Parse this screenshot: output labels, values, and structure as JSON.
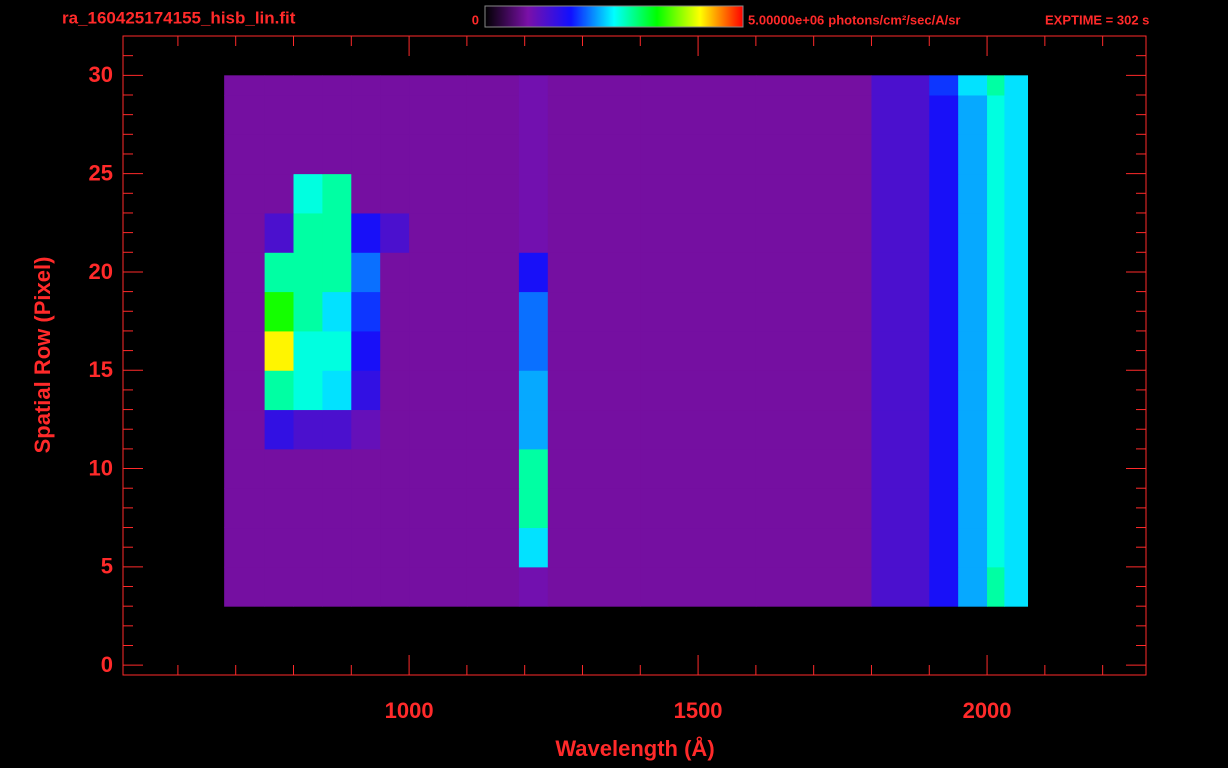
{
  "chart_data": {
    "type": "heatmap",
    "title": "ra_160425174155_hisb_lin.fit",
    "exposure": "EXPTIME = 302 s",
    "x_label": "Wavelength (Å)",
    "y_label": "Spatial Row (Pixel)",
    "xlim": [
      505,
      2275
    ],
    "xticks": [
      1000,
      1500,
      2000
    ],
    "xminorticks": [
      600,
      700,
      800,
      900,
      1100,
      1200,
      1300,
      1400,
      1600,
      1700,
      1800,
      1900,
      2100,
      2200
    ],
    "ylim": [
      -0.5,
      32
    ],
    "yticks": [
      0,
      5,
      10,
      15,
      20,
      25,
      30
    ],
    "yminorticks": [
      1,
      2,
      3,
      4,
      6,
      7,
      8,
      9,
      11,
      12,
      13,
      14,
      16,
      17,
      18,
      19,
      21,
      22,
      23,
      24,
      26,
      27,
      28,
      29,
      31
    ],
    "clim": [
      0,
      5000000
    ],
    "cticks": [
      0,
      {
        "value": 5000000,
        "label": "5.00000e+06"
      }
    ],
    "colorbar_unit": "photons/cm²/sec/A/sr",
    "colormap": [
      "#000000",
      "#7a10a8",
      "#1010ff",
      "#00ffff",
      "#00ff00",
      "#ffff00",
      "#ff0000"
    ],
    "axis_color": "#ff2a2a",
    "x_edges": [
      680,
      750,
      800,
      850,
      900,
      950,
      1000,
      1100,
      1190,
      1240,
      1400,
      1600,
      1800,
      1900,
      1950,
      2000,
      2030,
      2070
    ],
    "y_edges": [
      3,
      5,
      7,
      9,
      11,
      13,
      15,
      17,
      19,
      21,
      23,
      25,
      27,
      29,
      30
    ],
    "z": [
      [
        800000.0,
        800000.0,
        800000.0,
        800000.0,
        800000.0,
        800000.0,
        800000.0,
        800000.0,
        900000.0,
        800000.0,
        800000.0,
        800000.0,
        1200000.0,
        1600000.0,
        2200000.0,
        2800000.0,
        2400000.0
      ],
      [
        800000.0,
        800000.0,
        800000.0,
        800000.0,
        800000.0,
        800000.0,
        800000.0,
        800000.0,
        2400000.0,
        800000.0,
        800000.0,
        800000.0,
        1200000.0,
        1600000.0,
        2200000.0,
        2600000.0,
        2400000.0
      ],
      [
        800000.0,
        800000.0,
        800000.0,
        800000.0,
        800000.0,
        800000.0,
        800000.0,
        800000.0,
        2800000.0,
        800000.0,
        800000.0,
        800000.0,
        1200000.0,
        1600000.0,
        2200000.0,
        2600000.0,
        2400000.0
      ],
      [
        800000.0,
        800000.0,
        800000.0,
        800000.0,
        800000.0,
        800000.0,
        800000.0,
        800000.0,
        2800000.0,
        800000.0,
        800000.0,
        800000.0,
        1200000.0,
        1600000.0,
        2200000.0,
        2600000.0,
        2400000.0
      ],
      [
        800000.0,
        1400000.0,
        1200000.0,
        1200000.0,
        1000000.0,
        800000.0,
        800000.0,
        800000.0,
        2200000.0,
        800000.0,
        800000.0,
        800000.0,
        1200000.0,
        1600000.0,
        2200000.0,
        2600000.0,
        2400000.0
      ],
      [
        800000.0,
        2800000.0,
        2600000.0,
        2400000.0,
        1400000.0,
        800000.0,
        800000.0,
        800000.0,
        2200000.0,
        800000.0,
        800000.0,
        800000.0,
        1200000.0,
        1600000.0,
        2200000.0,
        2600000.0,
        2400000.0
      ],
      [
        800000.0,
        4200000.0,
        2600000.0,
        2600000.0,
        1600000.0,
        800000.0,
        800000.0,
        800000.0,
        2000000.0,
        800000.0,
        800000.0,
        800000.0,
        1200000.0,
        1600000.0,
        2200000.0,
        2600000.0,
        2400000.0
      ],
      [
        800000.0,
        3400000.0,
        2800000.0,
        2400000.0,
        1800000.0,
        800000.0,
        800000.0,
        800000.0,
        2000000.0,
        800000.0,
        800000.0,
        800000.0,
        1200000.0,
        1600000.0,
        2200000.0,
        2600000.0,
        2400000.0
      ],
      [
        800000.0,
        2800000.0,
        2800000.0,
        2800000.0,
        2000000.0,
        800000.0,
        800000.0,
        800000.0,
        1600000.0,
        800000.0,
        800000.0,
        800000.0,
        1200000.0,
        1600000.0,
        2200000.0,
        2600000.0,
        2400000.0
      ],
      [
        800000.0,
        1200000.0,
        2800000.0,
        2800000.0,
        1600000.0,
        1200000.0,
        800000.0,
        800000.0,
        900000.0,
        800000.0,
        800000.0,
        800000.0,
        1200000.0,
        1600000.0,
        2200000.0,
        2600000.0,
        2400000.0
      ],
      [
        800000.0,
        800000.0,
        2600000.0,
        2800000.0,
        800000.0,
        800000.0,
        800000.0,
        800000.0,
        900000.0,
        800000.0,
        800000.0,
        800000.0,
        1200000.0,
        1600000.0,
        2200000.0,
        2600000.0,
        2400000.0
      ],
      [
        800000.0,
        800000.0,
        800000.0,
        800000.0,
        800000.0,
        800000.0,
        800000.0,
        800000.0,
        900000.0,
        800000.0,
        800000.0,
        800000.0,
        1200000.0,
        1600000.0,
        2200000.0,
        2600000.0,
        2400000.0
      ],
      [
        800000.0,
        800000.0,
        800000.0,
        800000.0,
        800000.0,
        800000.0,
        800000.0,
        800000.0,
        900000.0,
        800000.0,
        800000.0,
        800000.0,
        1200000.0,
        1600000.0,
        2200000.0,
        2600000.0,
        2400000.0
      ],
      [
        800000.0,
        800000.0,
        800000.0,
        800000.0,
        800000.0,
        800000.0,
        800000.0,
        800000.0,
        900000.0,
        800000.0,
        800000.0,
        800000.0,
        1200000.0,
        1800000.0,
        2400000.0,
        2800000.0,
        2400000.0
      ]
    ]
  }
}
